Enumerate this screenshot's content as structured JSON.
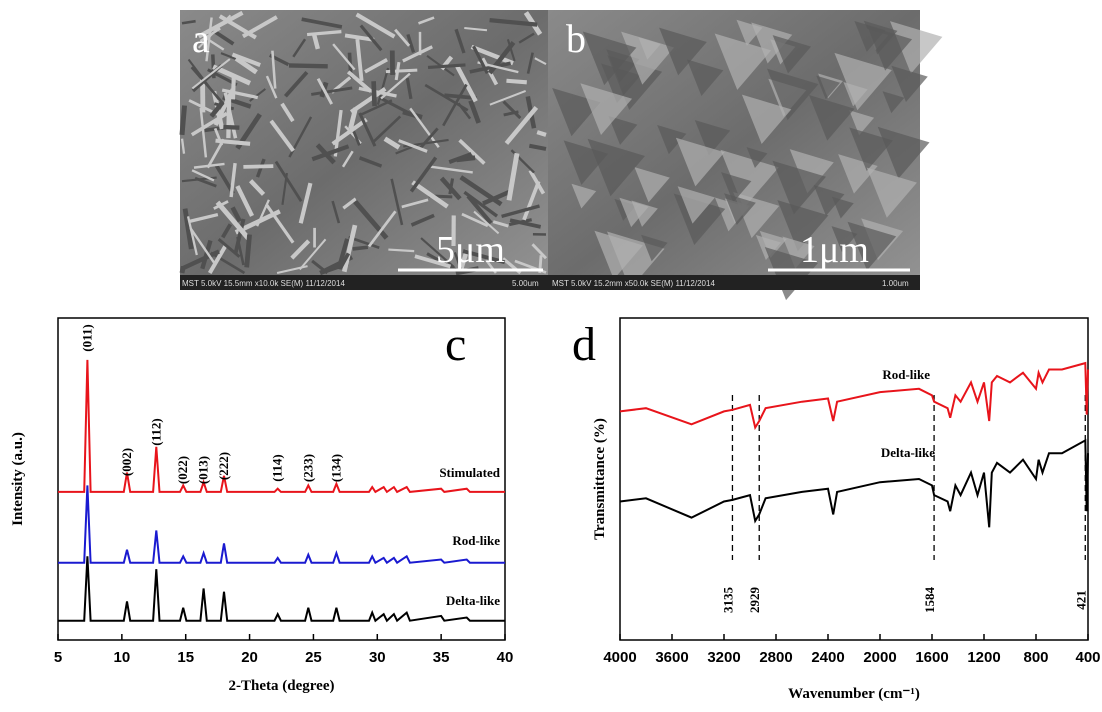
{
  "images": [
    {
      "label": "a",
      "scale": "5μm",
      "info": "MST 5.0kV 15.5mm x10.0k SE(M) 11/12/2014",
      "scale_text": "5.00um"
    },
    {
      "label": "b",
      "scale": "1μm",
      "info": "MST 5.0kV 15.2mm x50.0k SE(M) 11/12/2014",
      "scale_text": "1.00um"
    }
  ],
  "chart_data": [
    {
      "type": "line",
      "panel": "c",
      "xlabel": "2-Theta (degree)",
      "ylabel": "Intensity (a.u.)",
      "xlim": [
        5,
        40
      ],
      "xticks": [
        5,
        10,
        15,
        20,
        25,
        30,
        35,
        40
      ],
      "ylim": [
        0,
        100
      ],
      "annotations": [
        "(011)",
        "(002)",
        "(112)",
        "(022)",
        "(013)",
        "(222)",
        "(114)",
        "(233)",
        "(134)"
      ],
      "series": [
        {
          "name": "Stimulated",
          "color": "#e8141b",
          "x": [
            5,
            7.05,
            7.3,
            7.55,
            10.15,
            10.4,
            10.65,
            12.45,
            12.7,
            12.95,
            14.55,
            14.8,
            15.05,
            16.15,
            16.4,
            16.65,
            17.75,
            18,
            18.25,
            21.95,
            22.2,
            22.45,
            24.35,
            24.6,
            24.85,
            26.55,
            26.8,
            27.05,
            29.35,
            29.6,
            29.85,
            30.5,
            30.75,
            31.3,
            31.55,
            32.3,
            32.55,
            35,
            35.25,
            37,
            37.25,
            40
          ],
          "values": [
            46,
            46,
            87,
            46,
            46,
            52,
            46,
            46,
            60,
            46,
            46,
            48,
            46,
            46,
            49,
            46,
            46,
            51,
            46,
            46,
            47,
            46,
            46,
            48,
            46,
            46,
            48.5,
            46,
            46,
            47.5,
            46,
            47.5,
            46,
            47.5,
            46,
            47.5,
            46,
            47,
            46,
            47,
            46,
            46
          ]
        },
        {
          "name": "Rod-like",
          "color": "#1a1ad0",
          "x": [
            5,
            7.05,
            7.3,
            7.55,
            10.15,
            10.4,
            10.65,
            12.45,
            12.7,
            12.95,
            14.55,
            14.8,
            15.05,
            16.15,
            16.4,
            16.65,
            17.75,
            18,
            18.25,
            21.95,
            22.2,
            22.45,
            24.35,
            24.6,
            24.85,
            26.55,
            26.8,
            27.05,
            29.35,
            29.6,
            29.85,
            30.5,
            30.75,
            31.3,
            31.55,
            32.3,
            32.55,
            35,
            35.25,
            37,
            37.25,
            40
          ],
          "values": [
            24,
            24,
            48,
            24,
            24,
            28,
            24,
            24,
            34,
            24,
            24,
            26,
            24,
            24,
            27,
            24,
            24,
            30,
            24,
            24,
            25.5,
            24,
            24,
            26.5,
            24,
            24,
            27,
            24,
            24,
            26,
            24,
            25.5,
            24,
            25.5,
            24,
            26,
            24,
            25,
            24,
            25,
            24,
            24
          ]
        },
        {
          "name": "Delta-like",
          "color": "#000000",
          "x": [
            5,
            7.05,
            7.3,
            7.55,
            10.15,
            10.4,
            10.65,
            12.45,
            12.7,
            12.95,
            14.55,
            14.8,
            15.05,
            16.15,
            16.4,
            16.65,
            17.75,
            18,
            18.25,
            21.95,
            22.2,
            22.45,
            24.35,
            24.6,
            24.85,
            26.55,
            26.8,
            27.05,
            29.35,
            29.6,
            29.85,
            30.5,
            30.75,
            31.3,
            31.55,
            32.3,
            32.55,
            35,
            35.25,
            37,
            37.25,
            40
          ],
          "values": [
            6,
            6,
            26,
            6,
            6,
            12,
            6,
            6,
            22,
            6,
            6,
            10,
            6,
            6,
            16,
            6,
            6,
            15,
            6,
            6,
            8,
            6,
            6,
            10,
            6,
            6,
            10,
            6,
            6,
            8.5,
            6,
            8,
            6,
            8,
            6,
            8.5,
            6,
            7.5,
            6,
            7,
            6,
            6
          ]
        }
      ]
    },
    {
      "type": "line",
      "panel": "d",
      "xlabel": "Wavenumber (cm⁻¹)",
      "ylabel": "Transmittance (%)",
      "xlim": [
        4000,
        400
      ],
      "xticks": [
        4000,
        3600,
        3200,
        2800,
        2400,
        2000,
        1600,
        1200,
        800,
        400
      ],
      "ylim": [
        0,
        100
      ],
      "markers": [
        3135,
        2929,
        1584,
        421
      ],
      "series": [
        {
          "name": "Rod-like",
          "color": "#e8141b",
          "x": [
            4000,
            3800,
            3450,
            3200,
            3135,
            3000,
            2960,
            2929,
            2880,
            2600,
            2400,
            2360,
            2330,
            2000,
            1700,
            1600,
            1584,
            1480,
            1460,
            1420,
            1380,
            1300,
            1250,
            1200,
            1160,
            1140,
            1100,
            1000,
            900,
            800,
            780,
            750,
            700,
            600,
            421,
            410,
            400
          ],
          "values": [
            71,
            72,
            67,
            71,
            71.5,
            73,
            66,
            68,
            72,
            74,
            75,
            68,
            74,
            77,
            78,
            76,
            74,
            72,
            69,
            76,
            74,
            80,
            74,
            80,
            68,
            80,
            82,
            80,
            83,
            78,
            83,
            80,
            84,
            84,
            86,
            70,
            84
          ]
        },
        {
          "name": "Delta-like",
          "color": "#000000",
          "x": [
            4000,
            3800,
            3450,
            3200,
            3135,
            3000,
            2960,
            2929,
            2880,
            2600,
            2400,
            2360,
            2330,
            2000,
            1700,
            1600,
            1584,
            1480,
            1460,
            1420,
            1380,
            1300,
            1250,
            1200,
            1160,
            1140,
            1100,
            1000,
            900,
            800,
            780,
            750,
            700,
            600,
            421,
            410,
            400
          ],
          "values": [
            43,
            44,
            38,
            43,
            43.5,
            45,
            37,
            39,
            44,
            46,
            47,
            39,
            46,
            49,
            50,
            48,
            45,
            43,
            40,
            48,
            45,
            52,
            45,
            52,
            35,
            52,
            55,
            52,
            56,
            50,
            56,
            52,
            58,
            58,
            62,
            40,
            58
          ]
        }
      ]
    }
  ]
}
